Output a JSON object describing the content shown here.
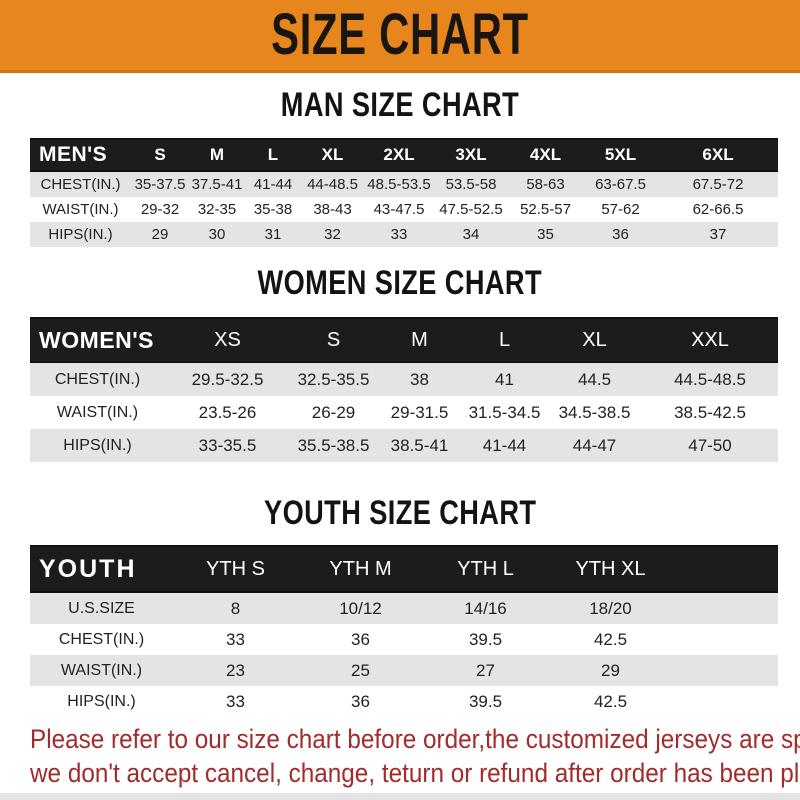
{
  "banner": {
    "title": "SIZE CHART"
  },
  "colors": {
    "banner_bg": "#E8861E",
    "banner_border": "#D2740F",
    "header_bar_bg": "#1C1C1C",
    "row_gray": "#E4E4E4",
    "row_white": "#FFFFFF",
    "disclaimer_text": "#A42B2B",
    "heading_text": "#131313"
  },
  "sections": [
    {
      "key": "men",
      "heading": "MAN SIZE CHART",
      "header_label": "MEN'S",
      "columns": [
        "S",
        "M",
        "L",
        "XL",
        "2XL",
        "3XL",
        "4XL",
        "5XL",
        "6XL"
      ],
      "rows": [
        {
          "label": "CHEST(IN.)",
          "values": [
            "35-37.5",
            "37.5-41",
            "41-44",
            "44-48.5",
            "48.5-53.5",
            "53.5-58",
            "58-63",
            "63-67.5",
            "67.5-72"
          ]
        },
        {
          "label": "WAIST(IN.)",
          "values": [
            "29-32",
            "32-35",
            "35-38",
            "38-43",
            "43-47.5",
            "47.5-52.5",
            "52.5-57",
            "57-62",
            "62-66.5"
          ]
        },
        {
          "label": "HIPS(IN.)",
          "values": [
            "29",
            "30",
            "31",
            "32",
            "33",
            "34",
            "35",
            "36",
            "37"
          ]
        }
      ]
    },
    {
      "key": "women",
      "heading": "WOMEN SIZE CHART",
      "header_label": "WOMEN'S",
      "columns": [
        "XS",
        "S",
        "M",
        "L",
        "XL",
        "XXL"
      ],
      "rows": [
        {
          "label": "CHEST(IN.)",
          "values": [
            "29.5-32.5",
            "32.5-35.5",
            "38",
            "41",
            "44.5",
            "44.5-48.5"
          ]
        },
        {
          "label": "WAIST(IN.)",
          "values": [
            "23.5-26",
            "26-29",
            "29-31.5",
            "31.5-34.5",
            "34.5-38.5",
            "38.5-42.5"
          ]
        },
        {
          "label": "HIPS(IN.)",
          "values": [
            "33-35.5",
            "35.5-38.5",
            "38.5-41",
            "41-44",
            "44-47",
            "47-50"
          ]
        }
      ]
    },
    {
      "key": "youth",
      "heading": "YOUTH SIZE CHART",
      "header_label": "YOUTH",
      "columns": [
        "YTH S",
        "YTH M",
        "YTH L",
        "YTH XL"
      ],
      "rows": [
        {
          "label": "U.S.SIZE",
          "values": [
            "8",
            "10/12",
            "14/16",
            "18/20"
          ]
        },
        {
          "label": "CHEST(IN.)",
          "values": [
            "33",
            "36",
            "39.5",
            "42.5"
          ]
        },
        {
          "label": "WAIST(IN.)",
          "values": [
            "23",
            "25",
            "27",
            "29"
          ]
        },
        {
          "label": "HIPS(IN.)",
          "values": [
            "33",
            "36",
            "39.5",
            "42.5"
          ]
        }
      ]
    }
  ],
  "disclaimer": {
    "lines": [
      "Please refer to our size chart before order,the customized jerseys are special products,",
      "we don't accept cancel, change, teturn or refund after order has been placed!"
    ]
  }
}
